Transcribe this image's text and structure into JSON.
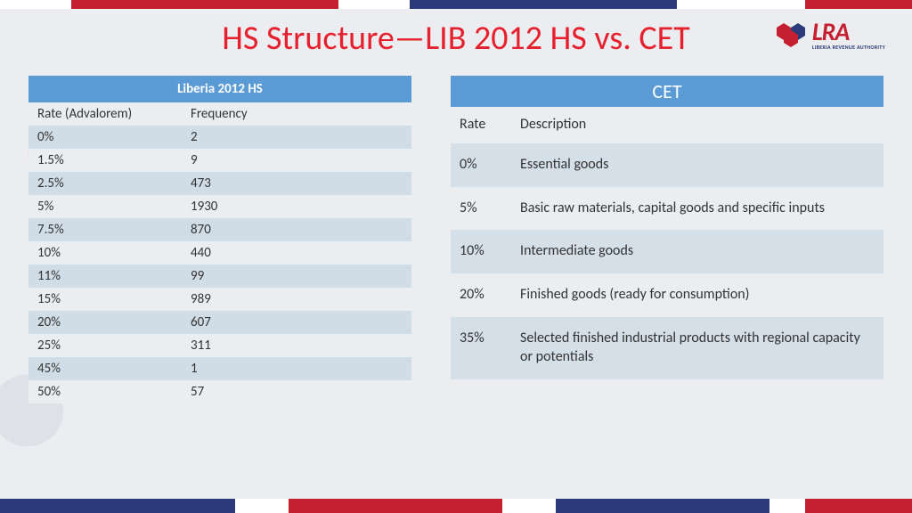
{
  "title": "HS Structure—LIB 2012 HS vs. CET",
  "logo": {
    "abbr": "LRA",
    "full": "LIBERIA REVENUE AUTHORITY"
  },
  "colors": {
    "red": "#c42030",
    "blue": "#2a3a7a",
    "table_header": "#5b9bd5",
    "row_light": "#eaeef1",
    "row_dark": "#d1dde6"
  },
  "left_table": {
    "header": "Liberia 2012 HS",
    "columns": [
      "Rate (Advalorem)",
      "Frequency"
    ],
    "rows": [
      [
        "0%",
        "2"
      ],
      [
        "1.5%",
        "9"
      ],
      [
        "2.5%",
        "473"
      ],
      [
        "5%",
        "1930"
      ],
      [
        "7.5%",
        "870"
      ],
      [
        "10%",
        "440"
      ],
      [
        "11%",
        "99"
      ],
      [
        "15%",
        "989"
      ],
      [
        "20%",
        "607"
      ],
      [
        "25%",
        "311"
      ],
      [
        "45%",
        "1"
      ],
      [
        "50%",
        "57"
      ]
    ]
  },
  "right_table": {
    "header": "CET",
    "columns": [
      "Rate",
      "Description"
    ],
    "rows": [
      [
        "0%",
        "Essential goods"
      ],
      [
        "5%",
        "Basic raw materials, capital goods and specific inputs"
      ],
      [
        "10%",
        "Intermediate goods"
      ],
      [
        "20%",
        "Finished goods (ready for consumption)"
      ],
      [
        "35%",
        "Selected finished industrial products with regional capacity or potentials"
      ]
    ]
  }
}
